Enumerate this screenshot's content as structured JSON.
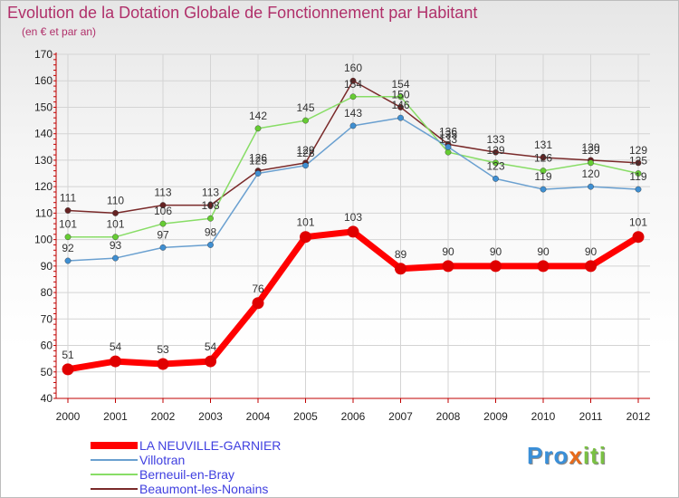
{
  "title": "Evolution de la Dotation Globale de Fonctionnement par Habitant",
  "subtitle": "(en € et par an)",
  "brand": {
    "p1": "Pro",
    "x": "x",
    "p2": "iti"
  },
  "chart_data": {
    "type": "line",
    "title": "Evolution de la Dotation Globale de Fonctionnement par Habitant",
    "ylabel": "(en € et par an)",
    "xlabel": "",
    "ylim": [
      40,
      170
    ],
    "yticks": [
      40,
      50,
      60,
      70,
      80,
      90,
      100,
      110,
      120,
      130,
      140,
      150,
      160,
      170
    ],
    "categories": [
      "2000",
      "2001",
      "2002",
      "2003",
      "2004",
      "2005",
      "2006",
      "2007",
      "2008",
      "2009",
      "2010",
      "2011",
      "2012"
    ],
    "grid": true,
    "legend": "bottom-left",
    "series": [
      {
        "name": "LA NEUVILLE-GARNIER",
        "color": "#ff0000",
        "marker": "#e00000",
        "values": [
          51,
          54,
          53,
          54,
          76,
          101,
          103,
          89,
          90,
          90,
          90,
          90,
          101
        ]
      },
      {
        "name": "Villotran",
        "color": "#6aa0d0",
        "marker": "#3f8fd2",
        "values": [
          92,
          93,
          97,
          98,
          125,
          128,
          143,
          146,
          135,
          123,
          119,
          120,
          119
        ]
      },
      {
        "name": "Berneuil-en-Bray",
        "color": "#88dd66",
        "marker": "#66cc33",
        "values": [
          101,
          101,
          106,
          108,
          142,
          145,
          154,
          154,
          133,
          129,
          126,
          129,
          125
        ]
      },
      {
        "name": "Beaumont-les-Nonains",
        "color": "#7a2a2a",
        "marker": "#662222",
        "values": [
          111,
          110,
          113,
          113,
          126,
          129,
          160,
          150,
          136,
          133,
          131,
          130,
          129
        ]
      }
    ]
  }
}
